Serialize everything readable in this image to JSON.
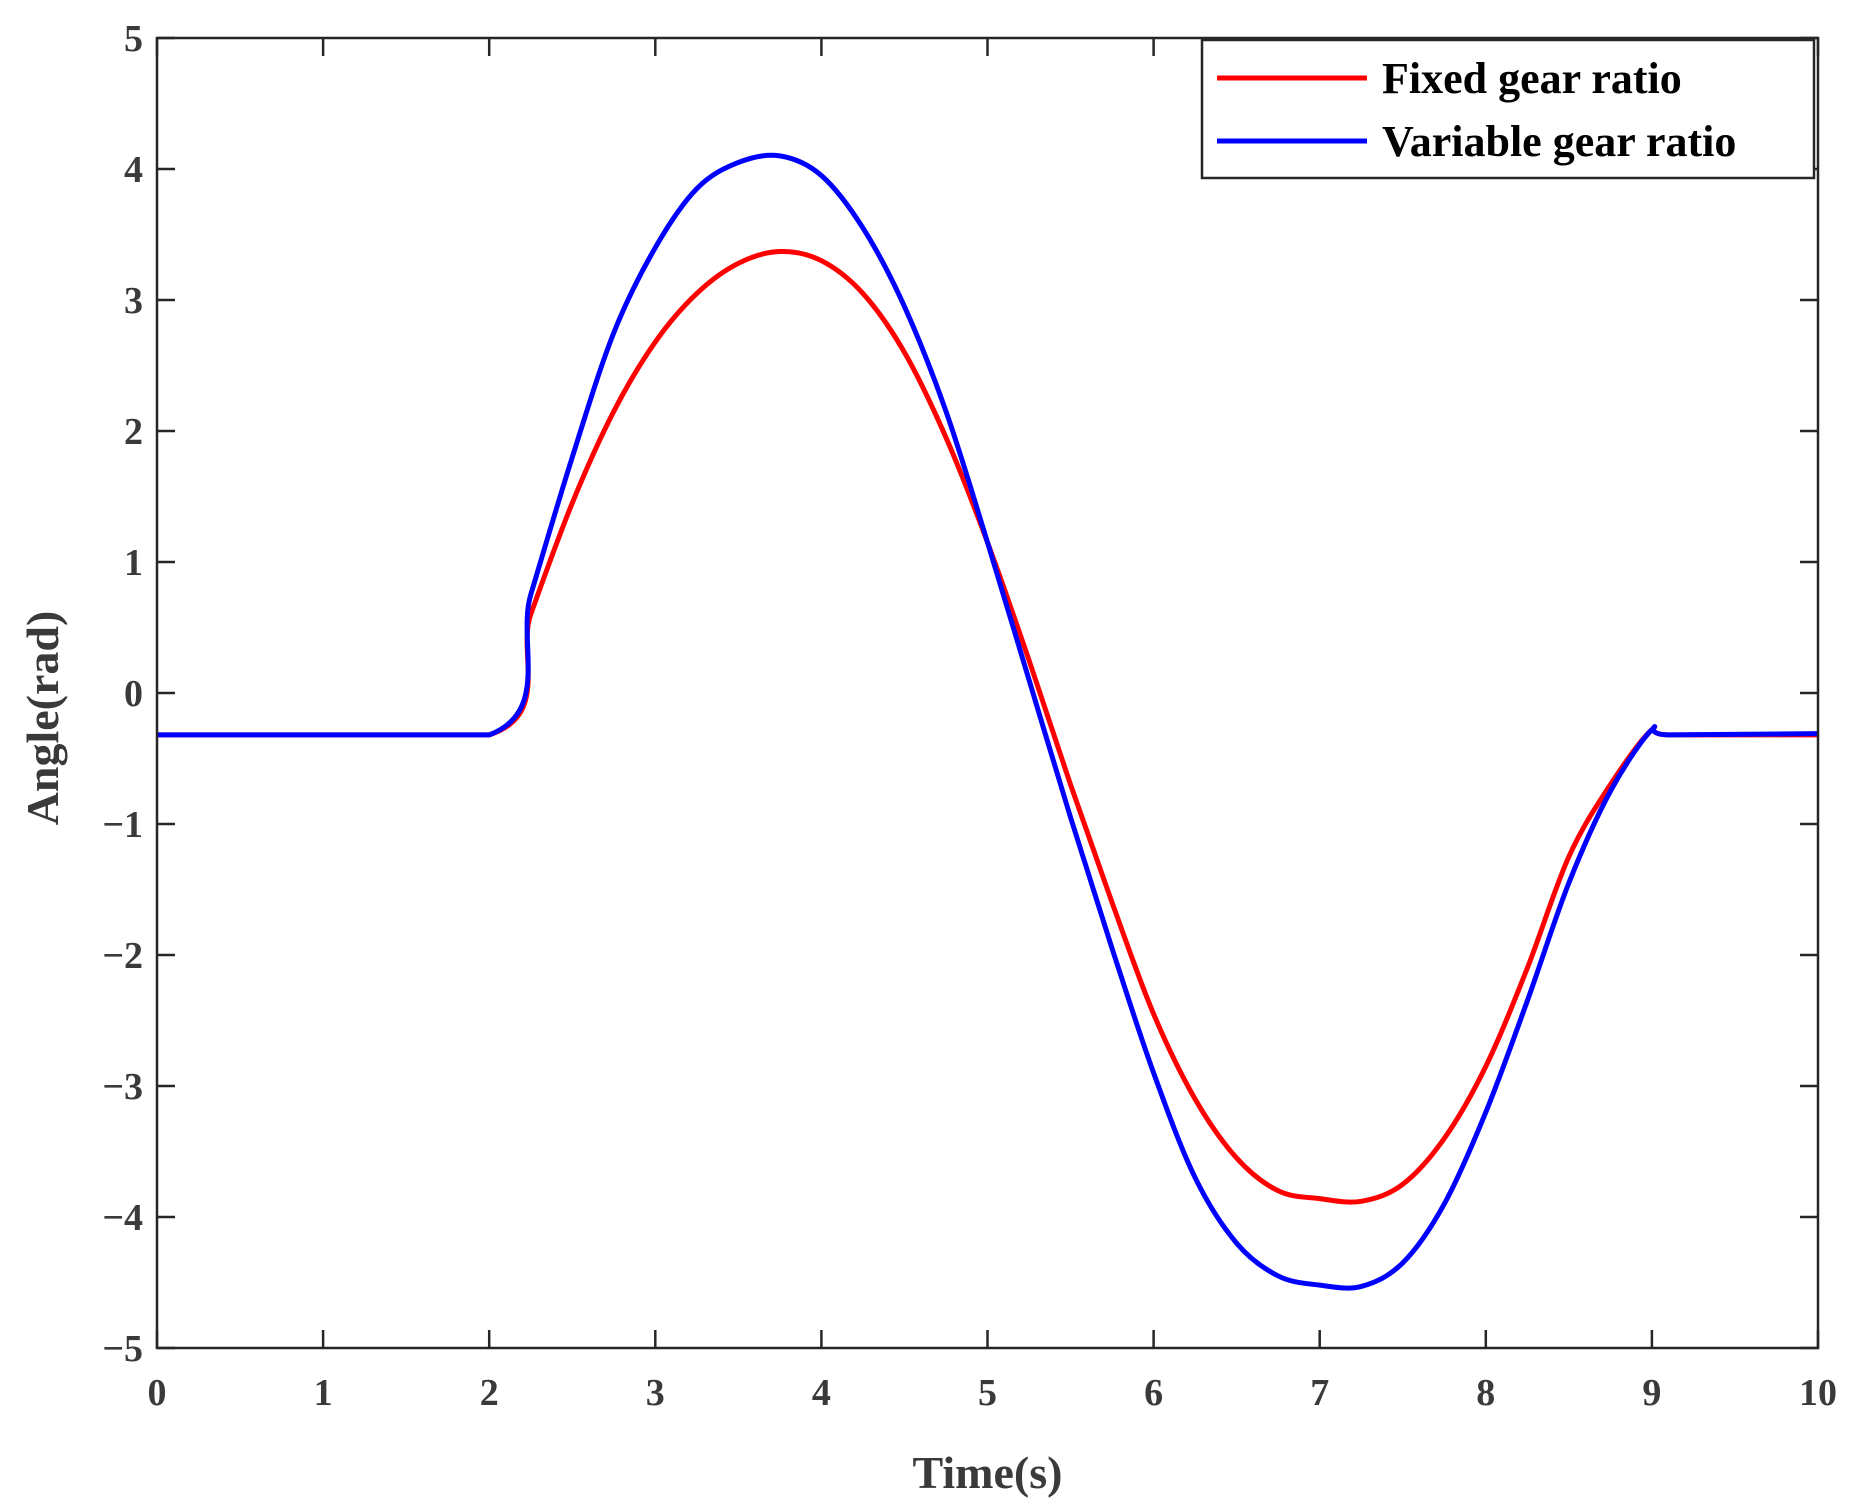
{
  "chart_data": {
    "type": "line",
    "title": "",
    "xlabel": "Time(s)",
    "ylabel": "Angle(rad)",
    "xlim": [
      0,
      10
    ],
    "ylim": [
      -5,
      5
    ],
    "xticks": [
      0,
      1,
      2,
      3,
      4,
      5,
      6,
      7,
      8,
      9,
      10
    ],
    "xtick_labels": [
      "0",
      "1",
      "2",
      "3",
      "4",
      "5",
      "6",
      "7",
      "8",
      "9",
      "10"
    ],
    "yticks": [
      5,
      4,
      3,
      2,
      1,
      0,
      -1,
      -2,
      -3,
      -4,
      -5
    ],
    "ytick_labels": [
      "5",
      "4",
      "3",
      "2",
      "1",
      "0",
      "−1",
      "−2",
      "−3",
      "−4",
      "−5"
    ],
    "grid": false,
    "legend": "top-right",
    "series": [
      {
        "name": "Fixed gear ratio",
        "color": "#ff0000",
        "x": [
          0,
          2.0,
          2.25,
          2.5,
          2.75,
          3.0,
          3.25,
          3.5,
          3.75,
          4.0,
          4.25,
          4.5,
          4.75,
          5.0,
          5.25,
          5.5,
          5.75,
          6.0,
          6.25,
          6.5,
          6.75,
          7.0,
          7.25,
          7.5,
          7.75,
          8.0,
          8.25,
          8.5,
          8.75,
          9.0,
          9.1,
          10.0
        ],
        "values": [
          -0.32,
          -0.32,
          0.6,
          1.45,
          2.15,
          2.68,
          3.05,
          3.28,
          3.37,
          3.3,
          3.05,
          2.6,
          1.95,
          1.15,
          0.25,
          -0.7,
          -1.6,
          -2.45,
          -3.1,
          -3.55,
          -3.8,
          -3.86,
          -3.88,
          -3.75,
          -3.4,
          -2.85,
          -2.1,
          -1.25,
          -0.7,
          -0.28,
          -0.32,
          -0.32
        ]
      },
      {
        "name": "Variable gear ratio",
        "color": "#0000ff",
        "x": [
          0,
          2.0,
          2.25,
          2.5,
          2.75,
          3.0,
          3.25,
          3.5,
          3.75,
          4.0,
          4.25,
          4.5,
          4.75,
          5.0,
          5.25,
          5.5,
          5.75,
          6.0,
          6.25,
          6.5,
          6.75,
          7.0,
          7.25,
          7.5,
          7.75,
          8.0,
          8.25,
          8.5,
          8.75,
          9.0,
          9.1,
          10.0
        ],
        "values": [
          -0.32,
          -0.32,
          0.75,
          1.8,
          2.75,
          3.4,
          3.85,
          4.05,
          4.1,
          3.95,
          3.55,
          2.95,
          2.15,
          1.15,
          0.1,
          -0.95,
          -1.95,
          -2.9,
          -3.7,
          -4.2,
          -4.45,
          -4.52,
          -4.53,
          -4.35,
          -3.9,
          -3.2,
          -2.35,
          -1.45,
          -0.75,
          -0.28,
          -0.32,
          -0.31
        ]
      }
    ]
  }
}
